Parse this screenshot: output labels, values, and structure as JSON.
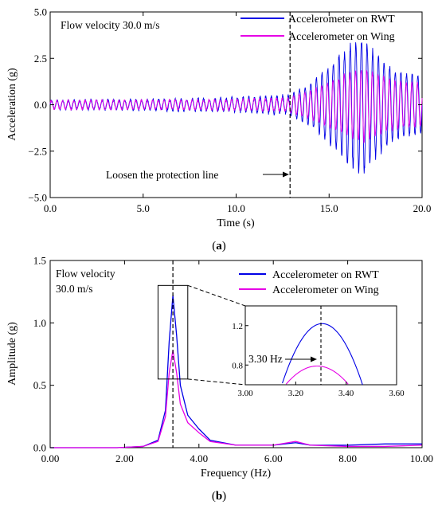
{
  "chart_data": [
    {
      "type": "line",
      "panel": "(a)",
      "annotation_condition": "Flow velocity 30.0 m/s",
      "annotation_event": "Loosen the protection line",
      "event_time": 12.9,
      "xlabel": "Time (s)",
      "ylabel": "Acceleration (g)",
      "xlim": [
        0,
        20
      ],
      "ylim": [
        -5,
        5
      ],
      "x_ticks": [
        "0.0",
        "5.0",
        "10.0",
        "15.0",
        "20.0"
      ],
      "y_ticks": [
        "5.0",
        "2.5",
        "0.0",
        "−2.5",
        "−5.0"
      ],
      "legend_position": "top-right",
      "series": [
        {
          "name": "Accelerometer on RWT",
          "color": "#0000e6",
          "envelope": {
            "t": [
              0,
              5,
              10,
              12.9,
              14,
              15,
              16,
              16.8,
              17.5,
              18.5,
              20
            ],
            "amp": [
              0.3,
              0.35,
              0.45,
              0.6,
              1.2,
              2.2,
              3.3,
              3.9,
              3.0,
              2.0,
              1.6
            ]
          },
          "frequency_hz": 3.3
        },
        {
          "name": "Accelerometer on Wing",
          "color": "#e600e6",
          "envelope": {
            "t": [
              0,
              5,
              10,
              12.9,
              14,
              15,
              16,
              16.8,
              17.5,
              18.5,
              20
            ],
            "amp": [
              0.3,
              0.3,
              0.35,
              0.45,
              0.8,
              1.3,
              1.8,
              2.1,
              1.8,
              1.4,
              1.2
            ]
          },
          "frequency_hz": 3.3
        }
      ]
    },
    {
      "type": "line",
      "panel": "(b)",
      "annotation_condition_line1": "Flow velocity",
      "annotation_condition_line2": "30.0 m/s",
      "peak_label": "3.30 Hz",
      "peak_frequency": 3.3,
      "xlabel": "Frequency (Hz)",
      "ylabel": "Amplitude (g)",
      "xlim": [
        0,
        10
      ],
      "ylim": [
        0,
        1.5
      ],
      "x_ticks": [
        "0.00",
        "2.00",
        "4.00",
        "6.00",
        "8.00",
        "10.00"
      ],
      "y_ticks": [
        "1.5",
        "1.0",
        "0.5",
        "0.0"
      ],
      "legend_position": "top-right",
      "series": [
        {
          "name": "Accelerometer on RWT",
          "color": "#0000e6",
          "x": [
            0,
            1.8,
            2.5,
            2.9,
            3.1,
            3.2,
            3.3,
            3.4,
            3.5,
            3.7,
            4.0,
            4.3,
            5.0,
            6.0,
            6.6,
            7.0,
            8.0,
            9.0,
            10.0
          ],
          "y": [
            0.0,
            0.0,
            0.01,
            0.06,
            0.3,
            0.85,
            1.22,
            0.9,
            0.5,
            0.26,
            0.15,
            0.06,
            0.02,
            0.02,
            0.04,
            0.02,
            0.02,
            0.03,
            0.03
          ]
        },
        {
          "name": "Accelerometer on Wing",
          "color": "#e600e6",
          "x": [
            0,
            1.8,
            2.5,
            2.9,
            3.1,
            3.2,
            3.3,
            3.4,
            3.5,
            3.7,
            4.0,
            4.3,
            5.0,
            6.0,
            6.6,
            7.0,
            8.0,
            9.0,
            10.0
          ],
          "y": [
            0.0,
            0.0,
            0.01,
            0.05,
            0.25,
            0.6,
            0.78,
            0.6,
            0.35,
            0.2,
            0.12,
            0.05,
            0.02,
            0.02,
            0.05,
            0.02,
            0.01,
            0.01,
            0.02
          ]
        }
      ],
      "inset": {
        "xlim": [
          3.0,
          3.6
        ],
        "ylim": [
          0.6,
          1.4
        ],
        "x_ticks": [
          "3.00",
          "3.20",
          "3.40",
          "3.60"
        ],
        "y_ticks": [
          "1.2",
          "0.8"
        ]
      }
    }
  ],
  "captions": {
    "a_open": "(",
    "a_letter": "a",
    "a_close": ")",
    "b_open": "(",
    "b_letter": "b",
    "b_close": ")"
  }
}
